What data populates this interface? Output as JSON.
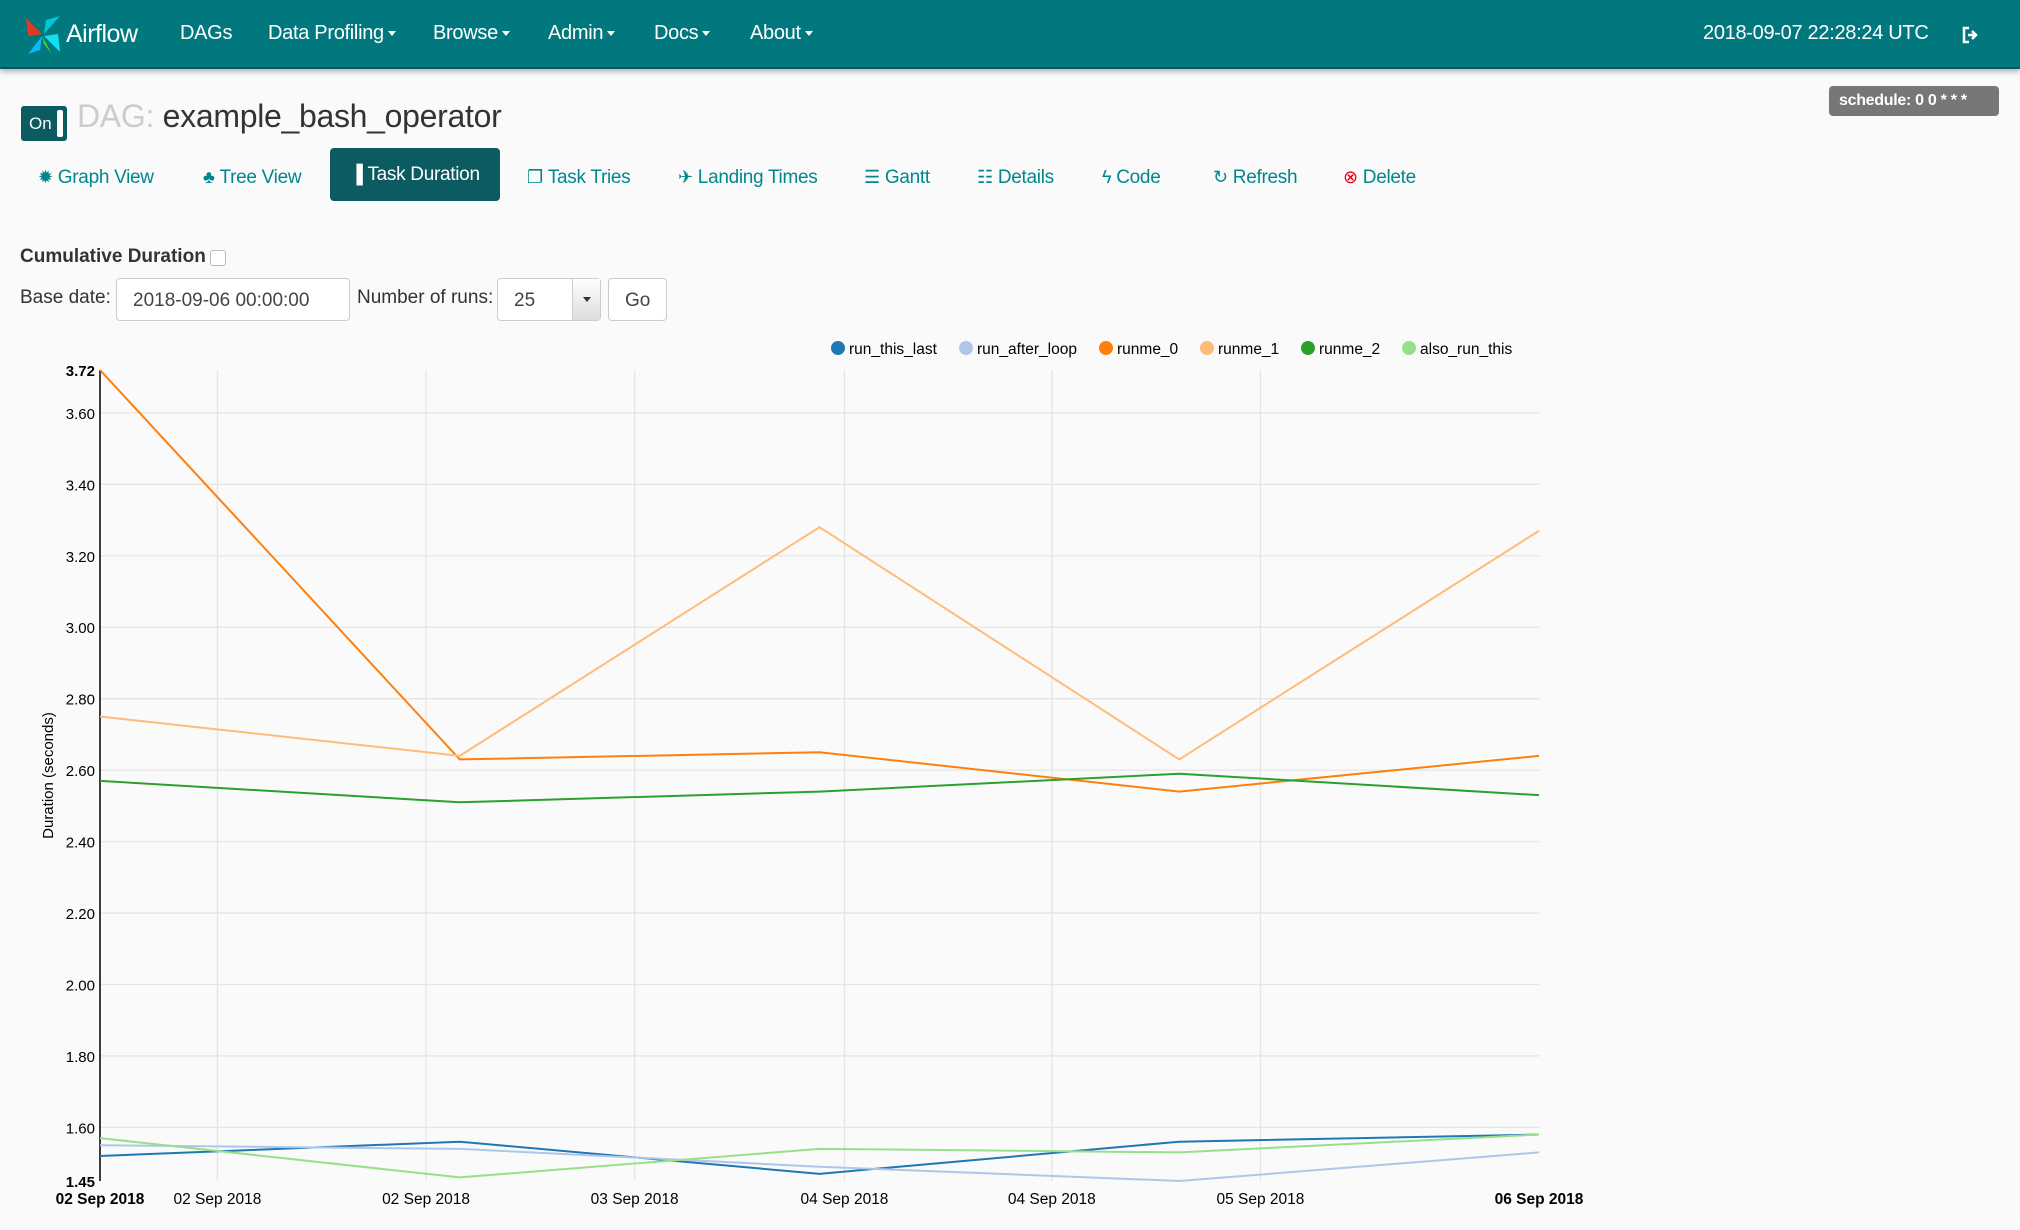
{
  "navbar": {
    "brand": "Airflow",
    "items": [
      {
        "label": "DAGs",
        "dropdown": false
      },
      {
        "label": "Data Profiling",
        "dropdown": true
      },
      {
        "label": "Browse",
        "dropdown": true
      },
      {
        "label": "Admin",
        "dropdown": true
      },
      {
        "label": "Docs",
        "dropdown": true
      },
      {
        "label": "About",
        "dropdown": true
      }
    ],
    "clock": "2018-09-07 22:28:24 UTC",
    "logout_icon": "sign-out-icon"
  },
  "dag": {
    "toggle": "On",
    "prefix": "DAG:",
    "name": "example_bash_operator",
    "schedule": "schedule: 0 0 * * *"
  },
  "tabs": [
    {
      "label": "Graph View",
      "icon": "certificate-icon"
    },
    {
      "label": "Tree View",
      "icon": "tree-icon"
    },
    {
      "label": "Task Duration",
      "icon": "bar-chart-icon",
      "active": true
    },
    {
      "label": "Task Tries",
      "icon": "files-icon"
    },
    {
      "label": "Landing Times",
      "icon": "plane-icon"
    },
    {
      "label": "Gantt",
      "icon": "align-left-icon"
    },
    {
      "label": "Details",
      "icon": "list-icon"
    },
    {
      "label": "Code",
      "icon": "flash-icon"
    },
    {
      "label": "Refresh",
      "icon": "refresh-icon"
    },
    {
      "label": "Delete",
      "icon": "remove-circle-icon"
    }
  ],
  "form": {
    "cumulative_label": "Cumulative Duration",
    "cumulative_checked": false,
    "base_date_label": "Base date:",
    "base_date": "2018-09-06 00:00:00",
    "runs_label": "Number of runs:",
    "runs": "25",
    "go": "Go"
  },
  "colors": {
    "navbar": "#00787e",
    "active_tab": "#0b5b60",
    "link": "#00878e",
    "delete_icon": "#e8001c"
  },
  "chart_data": {
    "type": "line",
    "title": "",
    "xlabel": "",
    "ylabel": "Duration (seconds)",
    "ylim": [
      1.45,
      3.72
    ],
    "xlim": [
      "2018-09-02T00:00",
      "2018-09-06T00:00"
    ],
    "grid": true,
    "legend": "top-right",
    "yticks": [
      "1.45",
      "1.60",
      "1.80",
      "2.00",
      "2.20",
      "2.40",
      "2.60",
      "2.80",
      "3.00",
      "3.20",
      "3.40",
      "3.60",
      "3.72"
    ],
    "xticks": [
      {
        "x": "2018-09-02T00:00",
        "label": "02 Sep 2018"
      },
      {
        "x": "2018-09-02T07:50",
        "label": "02 Sep 2018"
      },
      {
        "x": "2018-09-02T21:45",
        "label": "02 Sep 2018"
      },
      {
        "x": "2018-09-03T11:40",
        "label": "03 Sep 2018"
      },
      {
        "x": "2018-09-04T01:40",
        "label": "04 Sep 2018"
      },
      {
        "x": "2018-09-04T15:30",
        "label": "04 Sep 2018"
      },
      {
        "x": "2018-09-05T05:25",
        "label": "05 Sep 2018"
      },
      {
        "x": "2018-09-06T00:00",
        "label": "06 Sep 2018"
      }
    ],
    "x": [
      "2018-09-02T00:00",
      "2018-09-03T00:00",
      "2018-09-04T00:00",
      "2018-09-05T00:00",
      "2018-09-06T00:00"
    ],
    "series": [
      {
        "name": "run_this_last",
        "color": "#1f77b4",
        "values": [
          1.52,
          1.56,
          1.47,
          1.56,
          1.58
        ]
      },
      {
        "name": "run_after_loop",
        "color": "#aec7e8",
        "values": [
          1.55,
          1.54,
          1.49,
          1.45,
          1.53
        ]
      },
      {
        "name": "runme_0",
        "color": "#ff7f0e",
        "values": [
          3.72,
          2.63,
          2.65,
          2.54,
          2.64
        ]
      },
      {
        "name": "runme_1",
        "color": "#ffbb78",
        "values": [
          2.75,
          2.64,
          3.28,
          2.63,
          3.27
        ]
      },
      {
        "name": "runme_2",
        "color": "#2ca02c",
        "values": [
          2.57,
          2.51,
          2.54,
          2.59,
          2.53
        ]
      },
      {
        "name": "also_run_this",
        "color": "#98df8a",
        "values": [
          1.57,
          1.46,
          1.54,
          1.53,
          1.58
        ]
      }
    ]
  }
}
